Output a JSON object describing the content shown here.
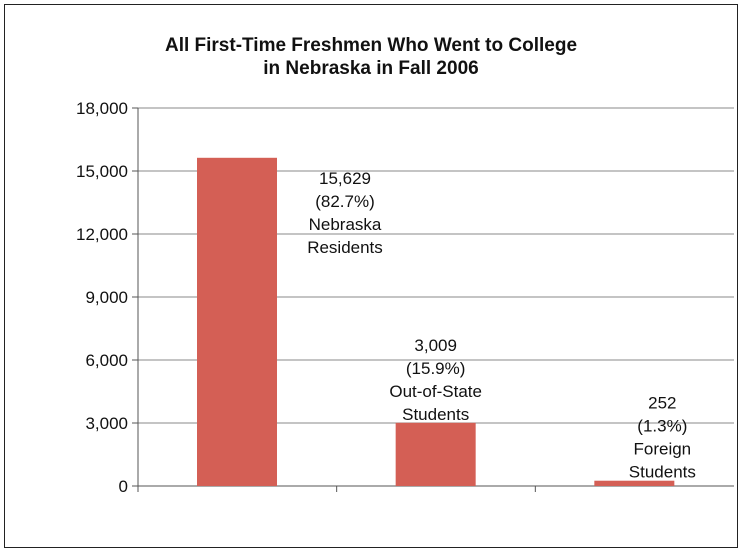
{
  "chart_data": {
    "type": "bar",
    "title_lines": [
      "All First-Time Freshmen Who Went to College",
      "in Nebraska in Fall 2006"
    ],
    "categories": [
      "Nebraska Residents",
      "Out-of-State Students",
      "Foreign Students"
    ],
    "values": [
      15629,
      3009,
      252
    ],
    "data_labels": [
      [
        "15,629",
        "(82.7%)",
        "Nebraska",
        "Residents"
      ],
      [
        "3,009",
        "(15.9%)",
        "Out-of-State",
        "Students"
      ],
      [
        "252",
        "(1.3%)",
        "Foreign",
        "Students"
      ]
    ],
    "yticks": [
      0,
      3000,
      6000,
      9000,
      12000,
      15000,
      18000
    ],
    "ytick_labels": [
      "0",
      "3,000",
      "6,000",
      "9,000",
      "12,000",
      "15,000",
      "18,000"
    ],
    "ylim": [
      0,
      18000
    ],
    "grid": true,
    "legend": "none",
    "bar_color": "#d45f55",
    "grid_color": "#888888"
  }
}
